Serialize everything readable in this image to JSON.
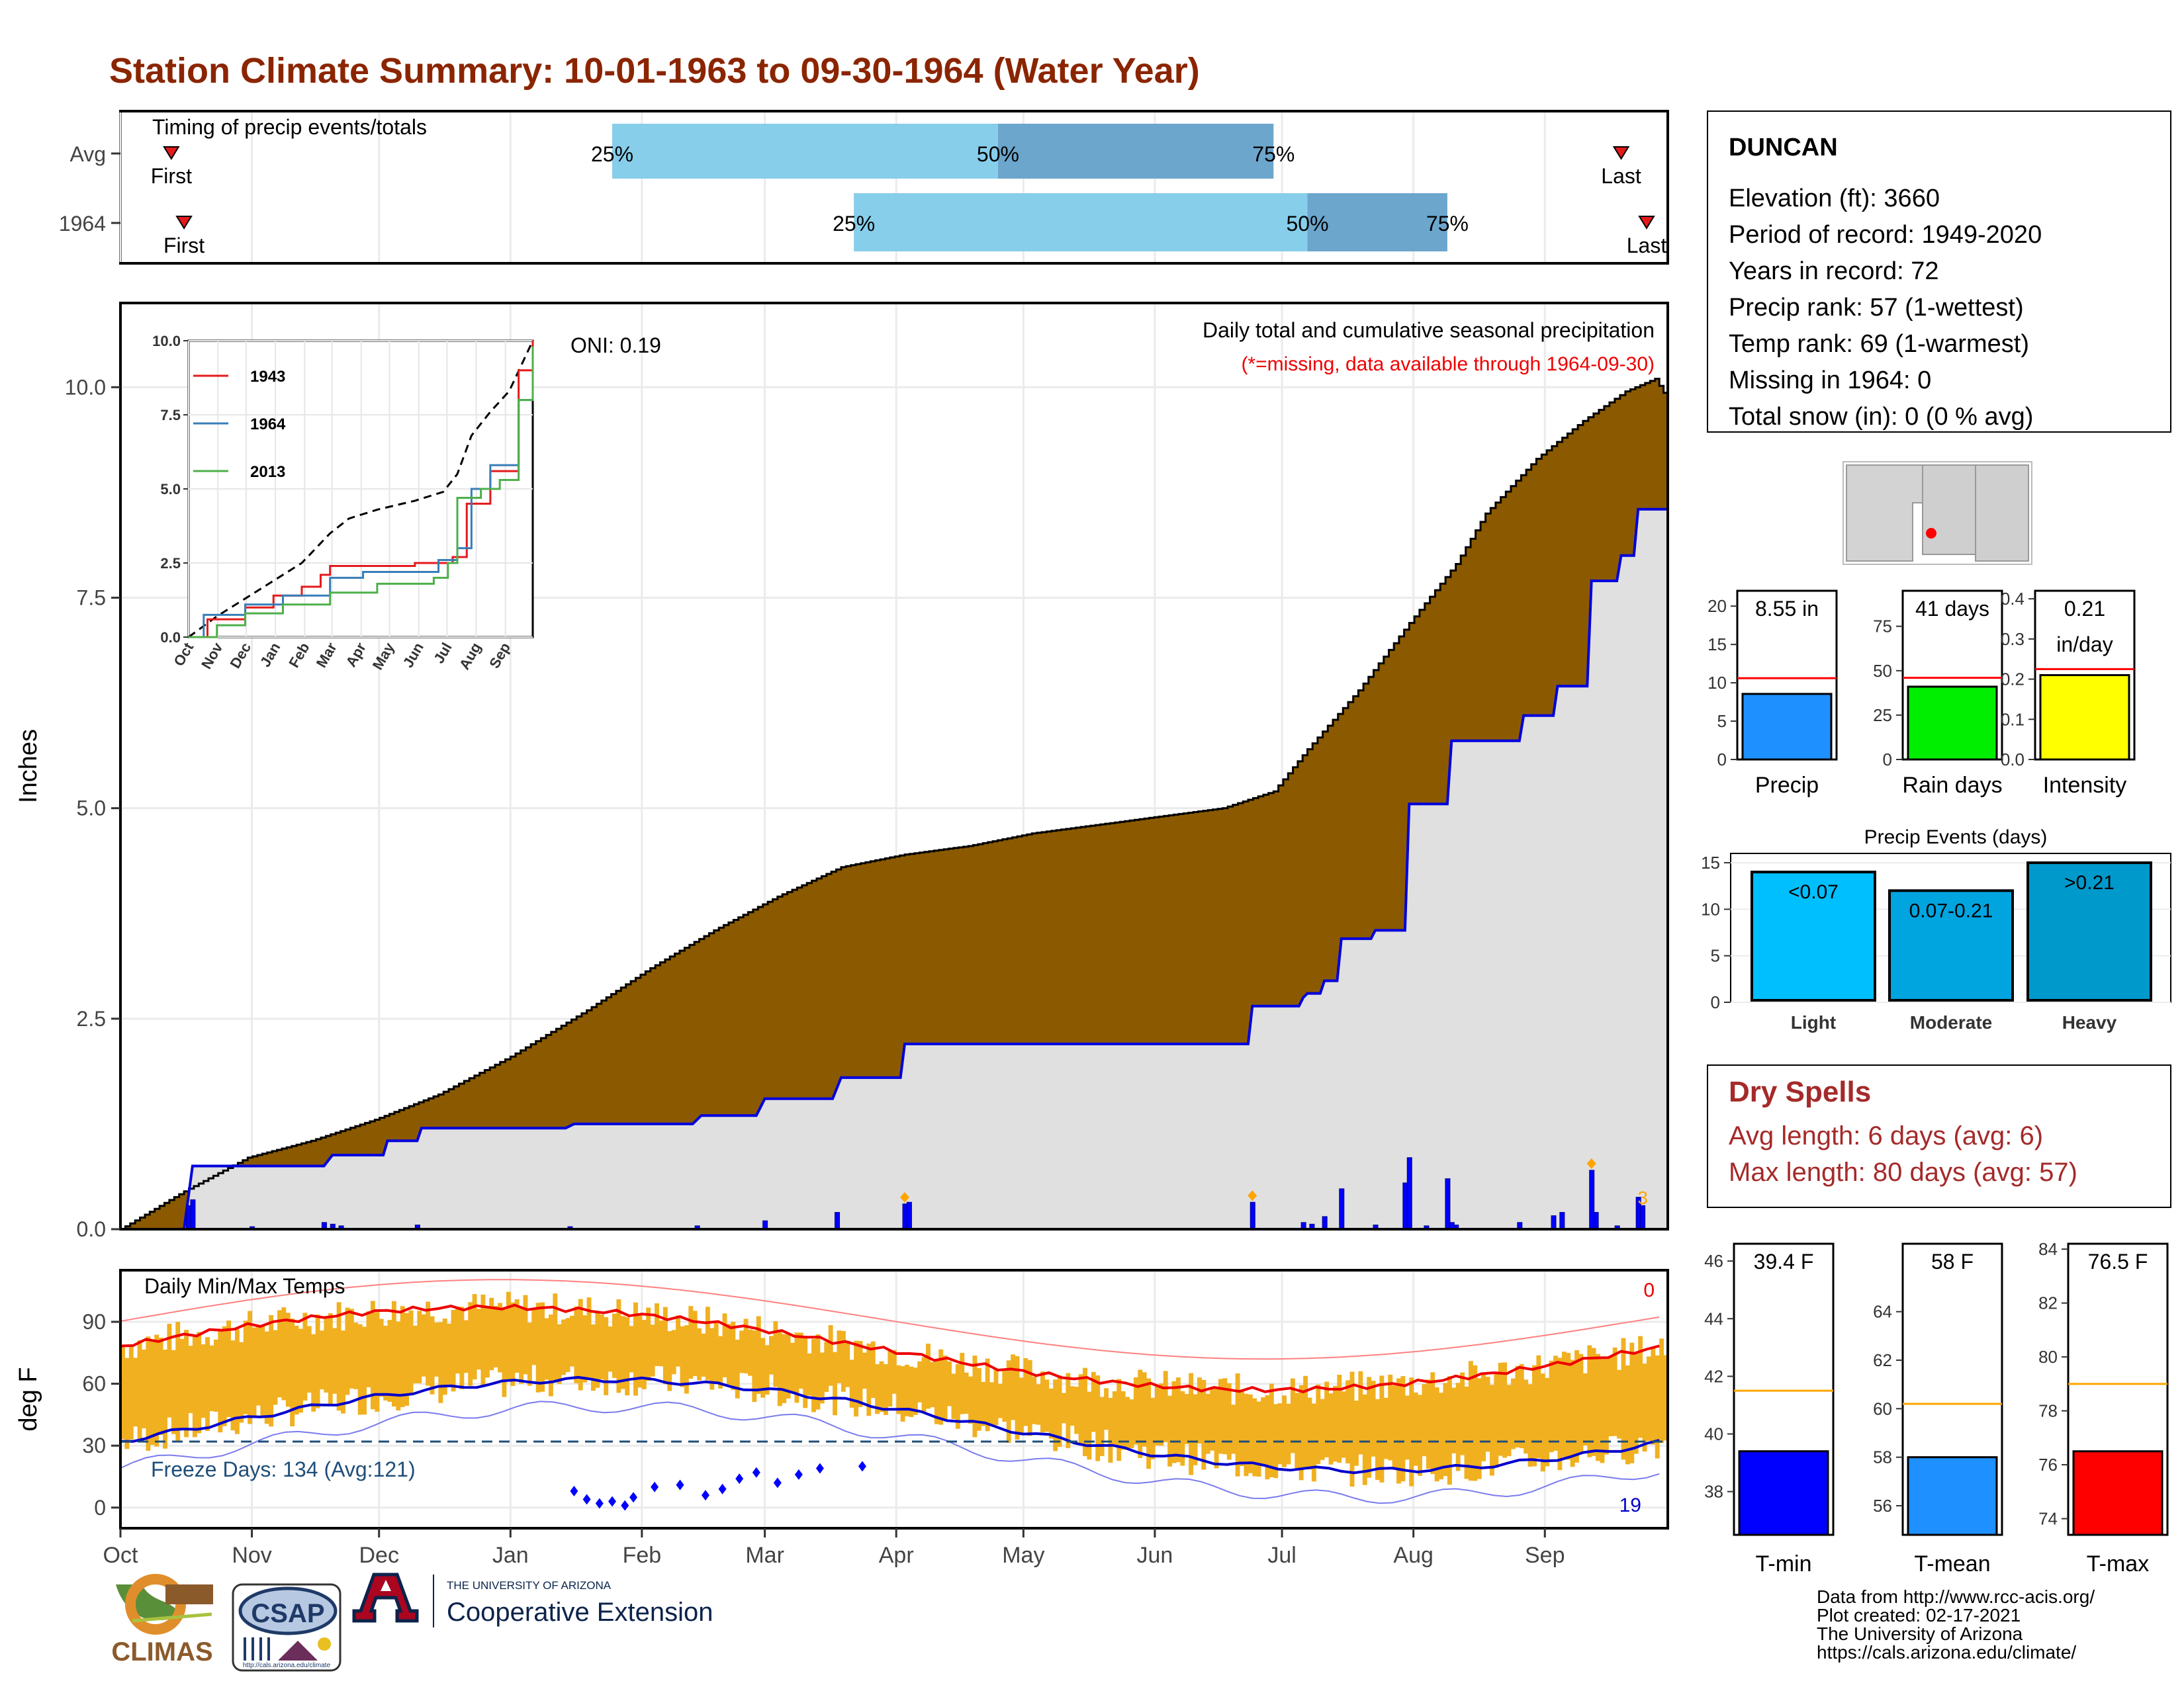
{
  "title": "Station Climate Summary: 10-01-1963 to 09-30-1964 (Water Year)",
  "colors": {
    "title": "#8B2500",
    "precip_fill": "#8B5A00",
    "avg_fill": "#E0E0E0",
    "cum_line": "#0000DD",
    "temp_bar": "#F0B020",
    "tmax_avg": "#EE0000",
    "tmin_avg": "#0000CC",
    "light_bar": "#00BFFF",
    "moderate_bar": "#00A5E0",
    "heavy_bar": "#0099CC",
    "quartile_light": "#87CEEB",
    "quartile_dark": "#6CA6CD"
  },
  "timing": {
    "label": "Timing of precip events/totals",
    "rows": [
      {
        "name": "Avg",
        "first_label": "First",
        "last_label": "Last",
        "first_doy": 12,
        "q25_doy": 116,
        "q50_doy": 207,
        "q75_doy": 272,
        "last_doy": 354,
        "q25_label": "25%",
        "q50_label": "50%",
        "q75_label": "75%"
      },
      {
        "name": "1964",
        "first_label": "First",
        "last_label": "Last",
        "first_doy": 15,
        "q25_doy": 173,
        "q50_doy": 280,
        "q75_doy": 313,
        "last_doy": 360,
        "q25_label": "25%",
        "q50_label": "50%",
        "q75_label": "75%"
      }
    ]
  },
  "precip_panel": {
    "ylabel": "Inches",
    "yticks": [
      "0.0",
      "2.5",
      "5.0",
      "7.5",
      "10.0"
    ],
    "ymax": 11.0,
    "oni": "ONI: 0.19",
    "header": "Daily total and cumulative seasonal precipitation",
    "missing_note": "(*=missing, data available through 1964-09-30)",
    "count_note": "3",
    "avg_cum": [
      [
        0,
        0
      ],
      [
        15,
        0.45
      ],
      [
        30,
        0.85
      ],
      [
        45,
        1.05
      ],
      [
        60,
        1.3
      ],
      [
        75,
        1.6
      ],
      [
        92,
        2.05
      ],
      [
        110,
        2.6
      ],
      [
        125,
        3.1
      ],
      [
        140,
        3.55
      ],
      [
        155,
        3.95
      ],
      [
        170,
        4.3
      ],
      [
        185,
        4.45
      ],
      [
        200,
        4.55
      ],
      [
        215,
        4.7
      ],
      [
        230,
        4.8
      ],
      [
        245,
        4.9
      ],
      [
        260,
        5.0
      ],
      [
        272,
        5.2
      ],
      [
        280,
        5.7
      ],
      [
        292,
        6.4
      ],
      [
        304,
        7.2
      ],
      [
        315,
        7.9
      ],
      [
        322,
        8.5
      ],
      [
        334,
        9.15
      ],
      [
        345,
        9.6
      ],
      [
        355,
        9.95
      ],
      [
        362,
        10.1
      ],
      [
        365,
        9.85
      ]
    ],
    "obs_cum": [
      [
        0,
        0
      ],
      [
        15,
        0.0
      ],
      [
        17,
        0.75
      ],
      [
        48,
        0.75
      ],
      [
        50,
        0.88
      ],
      [
        62,
        0.88
      ],
      [
        63,
        1.05
      ],
      [
        70,
        1.05
      ],
      [
        71,
        1.2
      ],
      [
        105,
        1.2
      ],
      [
        107,
        1.25
      ],
      [
        135,
        1.25
      ],
      [
        137,
        1.35
      ],
      [
        150,
        1.35
      ],
      [
        152,
        1.55
      ],
      [
        168,
        1.55
      ],
      [
        170,
        1.8
      ],
      [
        184,
        1.8
      ],
      [
        185,
        2.2
      ],
      [
        266,
        2.2
      ],
      [
        267,
        2.65
      ],
      [
        278,
        2.65
      ],
      [
        279,
        2.75
      ],
      [
        280,
        2.8
      ],
      [
        283,
        2.8
      ],
      [
        284,
        2.95
      ],
      [
        287,
        2.95
      ],
      [
        288,
        3.45
      ],
      [
        295,
        3.45
      ],
      [
        296,
        3.55
      ],
      [
        303,
        3.55
      ],
      [
        304,
        5.05
      ],
      [
        313,
        5.05
      ],
      [
        314,
        5.8
      ],
      [
        330,
        5.8
      ],
      [
        331,
        6.1
      ],
      [
        338,
        6.1
      ],
      [
        339,
        6.45
      ],
      [
        346,
        6.45
      ],
      [
        347,
        7.7
      ],
      [
        353,
        7.7
      ],
      [
        354,
        8.0
      ],
      [
        357,
        8.0
      ],
      [
        358,
        8.55
      ],
      [
        365,
        8.55
      ]
    ],
    "daily": [
      [
        16,
        0.28
      ],
      [
        17,
        0.35
      ],
      [
        31,
        0.03
      ],
      [
        48,
        0.08
      ],
      [
        50,
        0.06
      ],
      [
        52,
        0.04
      ],
      [
        70,
        0.05
      ],
      [
        106,
        0.03
      ],
      [
        136,
        0.04
      ],
      [
        152,
        0.1
      ],
      [
        169,
        0.2
      ],
      [
        185,
        0.3
      ],
      [
        186,
        0.32
      ],
      [
        267,
        0.32
      ],
      [
        279,
        0.08
      ],
      [
        281,
        0.06
      ],
      [
        284,
        0.15
      ],
      [
        288,
        0.48
      ],
      [
        296,
        0.05
      ],
      [
        303,
        0.55
      ],
      [
        304,
        0.85
      ],
      [
        308,
        0.04
      ],
      [
        313,
        0.6
      ],
      [
        314,
        0.08
      ],
      [
        315,
        0.05
      ],
      [
        330,
        0.08
      ],
      [
        338,
        0.16
      ],
      [
        340,
        0.2
      ],
      [
        347,
        0.7
      ],
      [
        348,
        0.2
      ],
      [
        353,
        0.04
      ],
      [
        358,
        0.38
      ],
      [
        359,
        0.28
      ]
    ],
    "markers_doy": [
      185,
      267,
      347
    ]
  },
  "inset": {
    "yticks": [
      "0.0",
      "2.5",
      "5.0",
      "7.5",
      "10.0"
    ],
    "months": [
      "Oct",
      "Nov",
      "Dec",
      "Jan",
      "Feb",
      "Mar",
      "Apr",
      "May",
      "Jun",
      "Jul",
      "Aug",
      "Sep"
    ],
    "series": [
      {
        "name": "1943",
        "color": "#E41A1C",
        "values": [
          [
            0,
            0
          ],
          [
            20,
            0.6
          ],
          [
            60,
            1.0
          ],
          [
            90,
            1.4
          ],
          [
            120,
            1.7
          ],
          [
            140,
            2.1
          ],
          [
            150,
            2.4
          ],
          [
            200,
            2.4
          ],
          [
            240,
            2.5
          ],
          [
            280,
            2.7
          ],
          [
            295,
            4.5
          ],
          [
            320,
            5.6
          ],
          [
            350,
            9.0
          ],
          [
            365,
            10.0
          ]
        ]
      },
      {
        "name": "1964",
        "color": "#377EB8",
        "values": [
          [
            0,
            0
          ],
          [
            16,
            0.75
          ],
          [
            60,
            1.1
          ],
          [
            100,
            1.4
          ],
          [
            150,
            2.0
          ],
          [
            185,
            2.2
          ],
          [
            265,
            2.6
          ],
          [
            285,
            3.0
          ],
          [
            300,
            5.0
          ],
          [
            320,
            5.8
          ],
          [
            350,
            8.0
          ],
          [
            365,
            8.6
          ]
        ]
      },
      {
        "name": "2013",
        "color": "#4DAF4A",
        "values": [
          [
            0,
            0
          ],
          [
            30,
            0.4
          ],
          [
            60,
            0.8
          ],
          [
            100,
            1.1
          ],
          [
            150,
            1.5
          ],
          [
            200,
            1.8
          ],
          [
            260,
            2.0
          ],
          [
            275,
            2.5
          ],
          [
            285,
            4.7
          ],
          [
            310,
            5.0
          ],
          [
            330,
            5.3
          ],
          [
            350,
            8.0
          ],
          [
            365,
            9.8
          ]
        ]
      }
    ],
    "avg_curve": [
      [
        0,
        0
      ],
      [
        30,
        0.7
      ],
      [
        60,
        1.3
      ],
      [
        90,
        1.9
      ],
      [
        120,
        2.5
      ],
      [
        150,
        3.5
      ],
      [
        170,
        4.0
      ],
      [
        200,
        4.3
      ],
      [
        240,
        4.6
      ],
      [
        270,
        4.9
      ],
      [
        285,
        5.5
      ],
      [
        300,
        6.8
      ],
      [
        320,
        7.6
      ],
      [
        340,
        8.3
      ],
      [
        365,
        10.0
      ]
    ]
  },
  "temp_panel": {
    "ylabel": "deg F",
    "label": "Daily Min/Max Temps",
    "yticks": [
      "0",
      "30",
      "60",
      "90"
    ],
    "ymin": -10,
    "ymax": 115,
    "freeze_line": 32,
    "freeze_label": "Freeze Days: 134 (Avg:121)",
    "hot_count": "0",
    "cold_count": "19"
  },
  "x_months": [
    "Oct",
    "Nov",
    "Dec",
    "Jan",
    "Feb",
    "Mar",
    "Apr",
    "May",
    "Jun",
    "Jul",
    "Aug",
    "Sep"
  ],
  "station": {
    "name": "DUNCAN",
    "lines": [
      "Elevation (ft): 3660",
      "Period of record: 1949-2020",
      "Years in record: 72",
      "Precip rank: 57 (1-wettest)",
      "Temp rank: 69 (1-warmest)",
      "Missing in 1964: 0",
      "Total snow (in): 0 (0 % avg)"
    ]
  },
  "mini_precip": [
    {
      "name": "Precip",
      "value_label": "8.55 in",
      "value": 8.55,
      "avg": 10.6,
      "max": 22,
      "ticks": [
        "0",
        "5",
        "10",
        "15",
        "20"
      ],
      "tickvals": [
        0,
        5,
        10,
        15,
        20
      ],
      "color": "#1E90FF"
    },
    {
      "name": "Rain days",
      "value_label": "41 days",
      "value": 41,
      "avg": 46,
      "max": 95,
      "ticks": [
        "0",
        "25",
        "50",
        "75"
      ],
      "tickvals": [
        0,
        25,
        50,
        75
      ],
      "color": "#00EE00"
    },
    {
      "name": "Intensity",
      "value_label": "0.21 in/day",
      "value_label_line1": "0.21",
      "value_label_line2": "in/day",
      "value": 0.21,
      "avg": 0.225,
      "max": 0.42,
      "ticks": [
        "0.0",
        "0.1",
        "0.2",
        "0.3",
        "0.4"
      ],
      "tickvals": [
        0,
        0.1,
        0.2,
        0.3,
        0.4
      ],
      "color": "#FFFF00"
    }
  ],
  "events": {
    "title": "Precip Events (days)",
    "ticks": [
      "0",
      "5",
      "10",
      "15"
    ],
    "bars": [
      {
        "name": "Light",
        "label": "<0.07",
        "value": 14
      },
      {
        "name": "Moderate",
        "label": "0.07-0.21",
        "value": 12
      },
      {
        "name": "Heavy",
        "label": ">0.21",
        "value": 15
      }
    ]
  },
  "dry_spells": {
    "title": "Dry Spells",
    "avg_length": "Avg length: 6 days (avg: 6)",
    "max_length": "Max length: 80 days (avg: 57)"
  },
  "mini_temp": [
    {
      "name": "T-min",
      "value_label": "39.4 F",
      "value": 39.4,
      "avg": 41.5,
      "min": 36.5,
      "max": 46.6,
      "ticks": [
        "38",
        "40",
        "42",
        "44",
        "46"
      ],
      "tickvals": [
        38,
        40,
        42,
        44,
        46
      ],
      "color": "#0000FF"
    },
    {
      "name": "T-mean",
      "value_label": "58 F",
      "value": 58.0,
      "avg": 60.2,
      "min": 54.8,
      "max": 66.8,
      "ticks": [
        "56",
        "58",
        "60",
        "62",
        "64"
      ],
      "tickvals": [
        56,
        58,
        60,
        62,
        64
      ],
      "color": "#1E90FF"
    },
    {
      "name": "T-max",
      "value_label": "76.5 F",
      "value": 76.5,
      "avg": 79.0,
      "min": 73.4,
      "max": 84.2,
      "ticks": [
        "74",
        "76",
        "78",
        "80",
        "82",
        "84"
      ],
      "tickvals": [
        74,
        76,
        78,
        80,
        82,
        84
      ],
      "color": "#FF0000"
    }
  ],
  "footer": {
    "lines": [
      "Data from http://www.rcc-acis.org/",
      "Plot created: 02-17-2021",
      "The University of Arizona",
      "https://cals.arizona.edu/climate/"
    ],
    "logo_climas": "CLIMAS",
    "logo_csap": "CSAP",
    "csap_url": "http://cals.arizona.edu/climate",
    "ua_small": "THE UNIVERSITY OF ARIZONA",
    "ua_big": "Cooperative Extension"
  }
}
